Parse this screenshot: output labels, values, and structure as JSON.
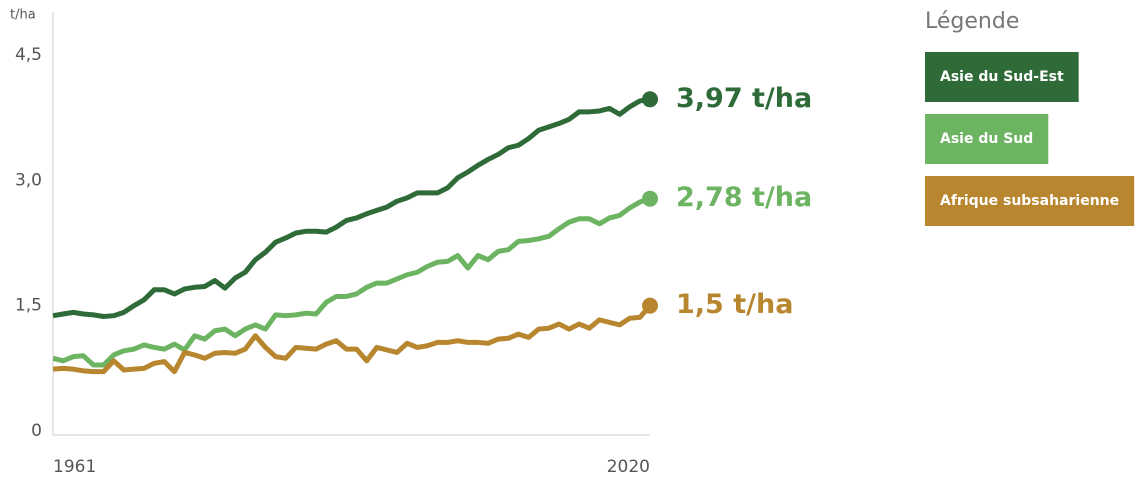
{
  "chart_data": {
    "type": "line",
    "y_unit": "t/ha",
    "legend_title": "Légende",
    "x": [
      1961,
      1962,
      1963,
      1964,
      1965,
      1966,
      1967,
      1968,
      1969,
      1970,
      1971,
      1972,
      1973,
      1974,
      1975,
      1976,
      1977,
      1978,
      1979,
      1980,
      1981,
      1982,
      1983,
      1984,
      1985,
      1986,
      1987,
      1988,
      1989,
      1990,
      1991,
      1992,
      1993,
      1994,
      1995,
      1996,
      1997,
      1998,
      1999,
      2000,
      2001,
      2002,
      2003,
      2004,
      2005,
      2006,
      2007,
      2008,
      2009,
      2010,
      2011,
      2012,
      2013,
      2014,
      2015,
      2016,
      2017,
      2018,
      2019,
      2020
    ],
    "xlim": [
      1961,
      2020
    ],
    "xticks": [
      1961,
      2020
    ],
    "ylim": [
      0,
      4.5
    ],
    "yticks": [
      0,
      {
        "value": 1.5,
        "label": "1,5"
      },
      {
        "value": 3,
        "label": "3,0"
      },
      {
        "value": 4.5,
        "label": "4,5"
      }
    ],
    "series": [
      {
        "name": "Asie du Sud-Est",
        "color": "#2e6b38",
        "values": [
          1.38,
          1.4,
          1.42,
          1.4,
          1.39,
          1.37,
          1.38,
          1.42,
          1.5,
          1.57,
          1.69,
          1.69,
          1.64,
          1.7,
          1.72,
          1.73,
          1.8,
          1.71,
          1.83,
          1.9,
          2.05,
          2.14,
          2.26,
          2.31,
          2.37,
          2.39,
          2.39,
          2.38,
          2.44,
          2.52,
          2.55,
          2.6,
          2.64,
          2.68,
          2.75,
          2.79,
          2.85,
          2.85,
          2.85,
          2.91,
          3.03,
          3.1,
          3.18,
          3.25,
          3.31,
          3.39,
          3.42,
          3.5,
          3.6,
          3.64,
          3.68,
          3.73,
          3.82,
          3.82,
          3.83,
          3.86,
          3.79,
          3.88,
          3.95,
          3.97
        ],
        "value_labels": [
          null,
          null,
          null,
          null,
          null,
          null,
          null,
          null,
          null,
          null,
          null,
          null,
          null,
          null,
          null,
          null,
          null,
          null,
          null,
          null,
          null,
          null,
          null,
          null,
          null,
          null,
          null,
          null,
          null,
          null,
          null,
          null,
          null,
          null,
          null,
          null,
          null,
          null,
          null,
          null,
          null,
          null,
          null,
          null,
          null,
          null,
          null,
          null,
          null,
          null,
          null,
          null,
          null,
          null,
          null,
          null,
          null,
          null,
          null,
          "3,97 t/ha"
        ]
      },
      {
        "name": "Asie du Sud",
        "color": "#6db462",
        "values": [
          0.87,
          0.84,
          0.89,
          0.9,
          0.79,
          0.79,
          0.91,
          0.96,
          0.98,
          1.03,
          1.0,
          0.98,
          1.04,
          0.97,
          1.14,
          1.1,
          1.2,
          1.22,
          1.14,
          1.22,
          1.27,
          1.22,
          1.39,
          1.38,
          1.39,
          1.41,
          1.4,
          1.54,
          1.61,
          1.61,
          1.64,
          1.72,
          1.77,
          1.77,
          1.82,
          1.87,
          1.9,
          1.97,
          2.02,
          2.03,
          2.1,
          1.95,
          2.1,
          2.05,
          2.15,
          2.17,
          2.27,
          2.28,
          2.3,
          2.33,
          2.42,
          2.5,
          2.54,
          2.54,
          2.48,
          2.55,
          2.58,
          2.67,
          2.74,
          2.78
        ],
        "value_labels": [
          null,
          null,
          null,
          null,
          null,
          null,
          null,
          null,
          null,
          null,
          null,
          null,
          null,
          null,
          null,
          null,
          null,
          null,
          null,
          null,
          null,
          null,
          null,
          null,
          null,
          null,
          null,
          null,
          null,
          null,
          null,
          null,
          null,
          null,
          null,
          null,
          null,
          null,
          null,
          null,
          null,
          null,
          null,
          null,
          null,
          null,
          null,
          null,
          null,
          null,
          null,
          null,
          null,
          null,
          null,
          null,
          null,
          null,
          null,
          "2,78 t/ha"
        ]
      },
      {
        "name": "Afrique subsaharienne",
        "color": "#b8862e",
        "values": [
          0.74,
          0.75,
          0.74,
          0.72,
          0.71,
          0.71,
          0.84,
          0.73,
          0.74,
          0.75,
          0.81,
          0.83,
          0.71,
          0.94,
          0.91,
          0.87,
          0.93,
          0.94,
          0.93,
          0.98,
          1.14,
          1.0,
          0.89,
          0.87,
          1.0,
          0.99,
          0.98,
          1.04,
          1.08,
          0.98,
          0.98,
          0.84,
          1.0,
          0.97,
          0.94,
          1.05,
          1.0,
          1.02,
          1.06,
          1.06,
          1.08,
          1.06,
          1.06,
          1.05,
          1.1,
          1.11,
          1.16,
          1.12,
          1.22,
          1.23,
          1.28,
          1.22,
          1.28,
          1.23,
          1.33,
          1.3,
          1.27,
          1.35,
          1.36,
          1.5
        ],
        "value_labels": [
          null,
          null,
          null,
          null,
          null,
          null,
          null,
          null,
          null,
          null,
          null,
          null,
          null,
          null,
          null,
          null,
          null,
          null,
          null,
          null,
          null,
          null,
          null,
          null,
          null,
          null,
          null,
          null,
          null,
          null,
          null,
          null,
          null,
          null,
          null,
          null,
          null,
          null,
          null,
          null,
          null,
          null,
          null,
          null,
          null,
          null,
          null,
          null,
          null,
          null,
          null,
          null,
          null,
          null,
          null,
          null,
          null,
          null,
          null,
          "1,5 t/ha"
        ]
      }
    ]
  }
}
